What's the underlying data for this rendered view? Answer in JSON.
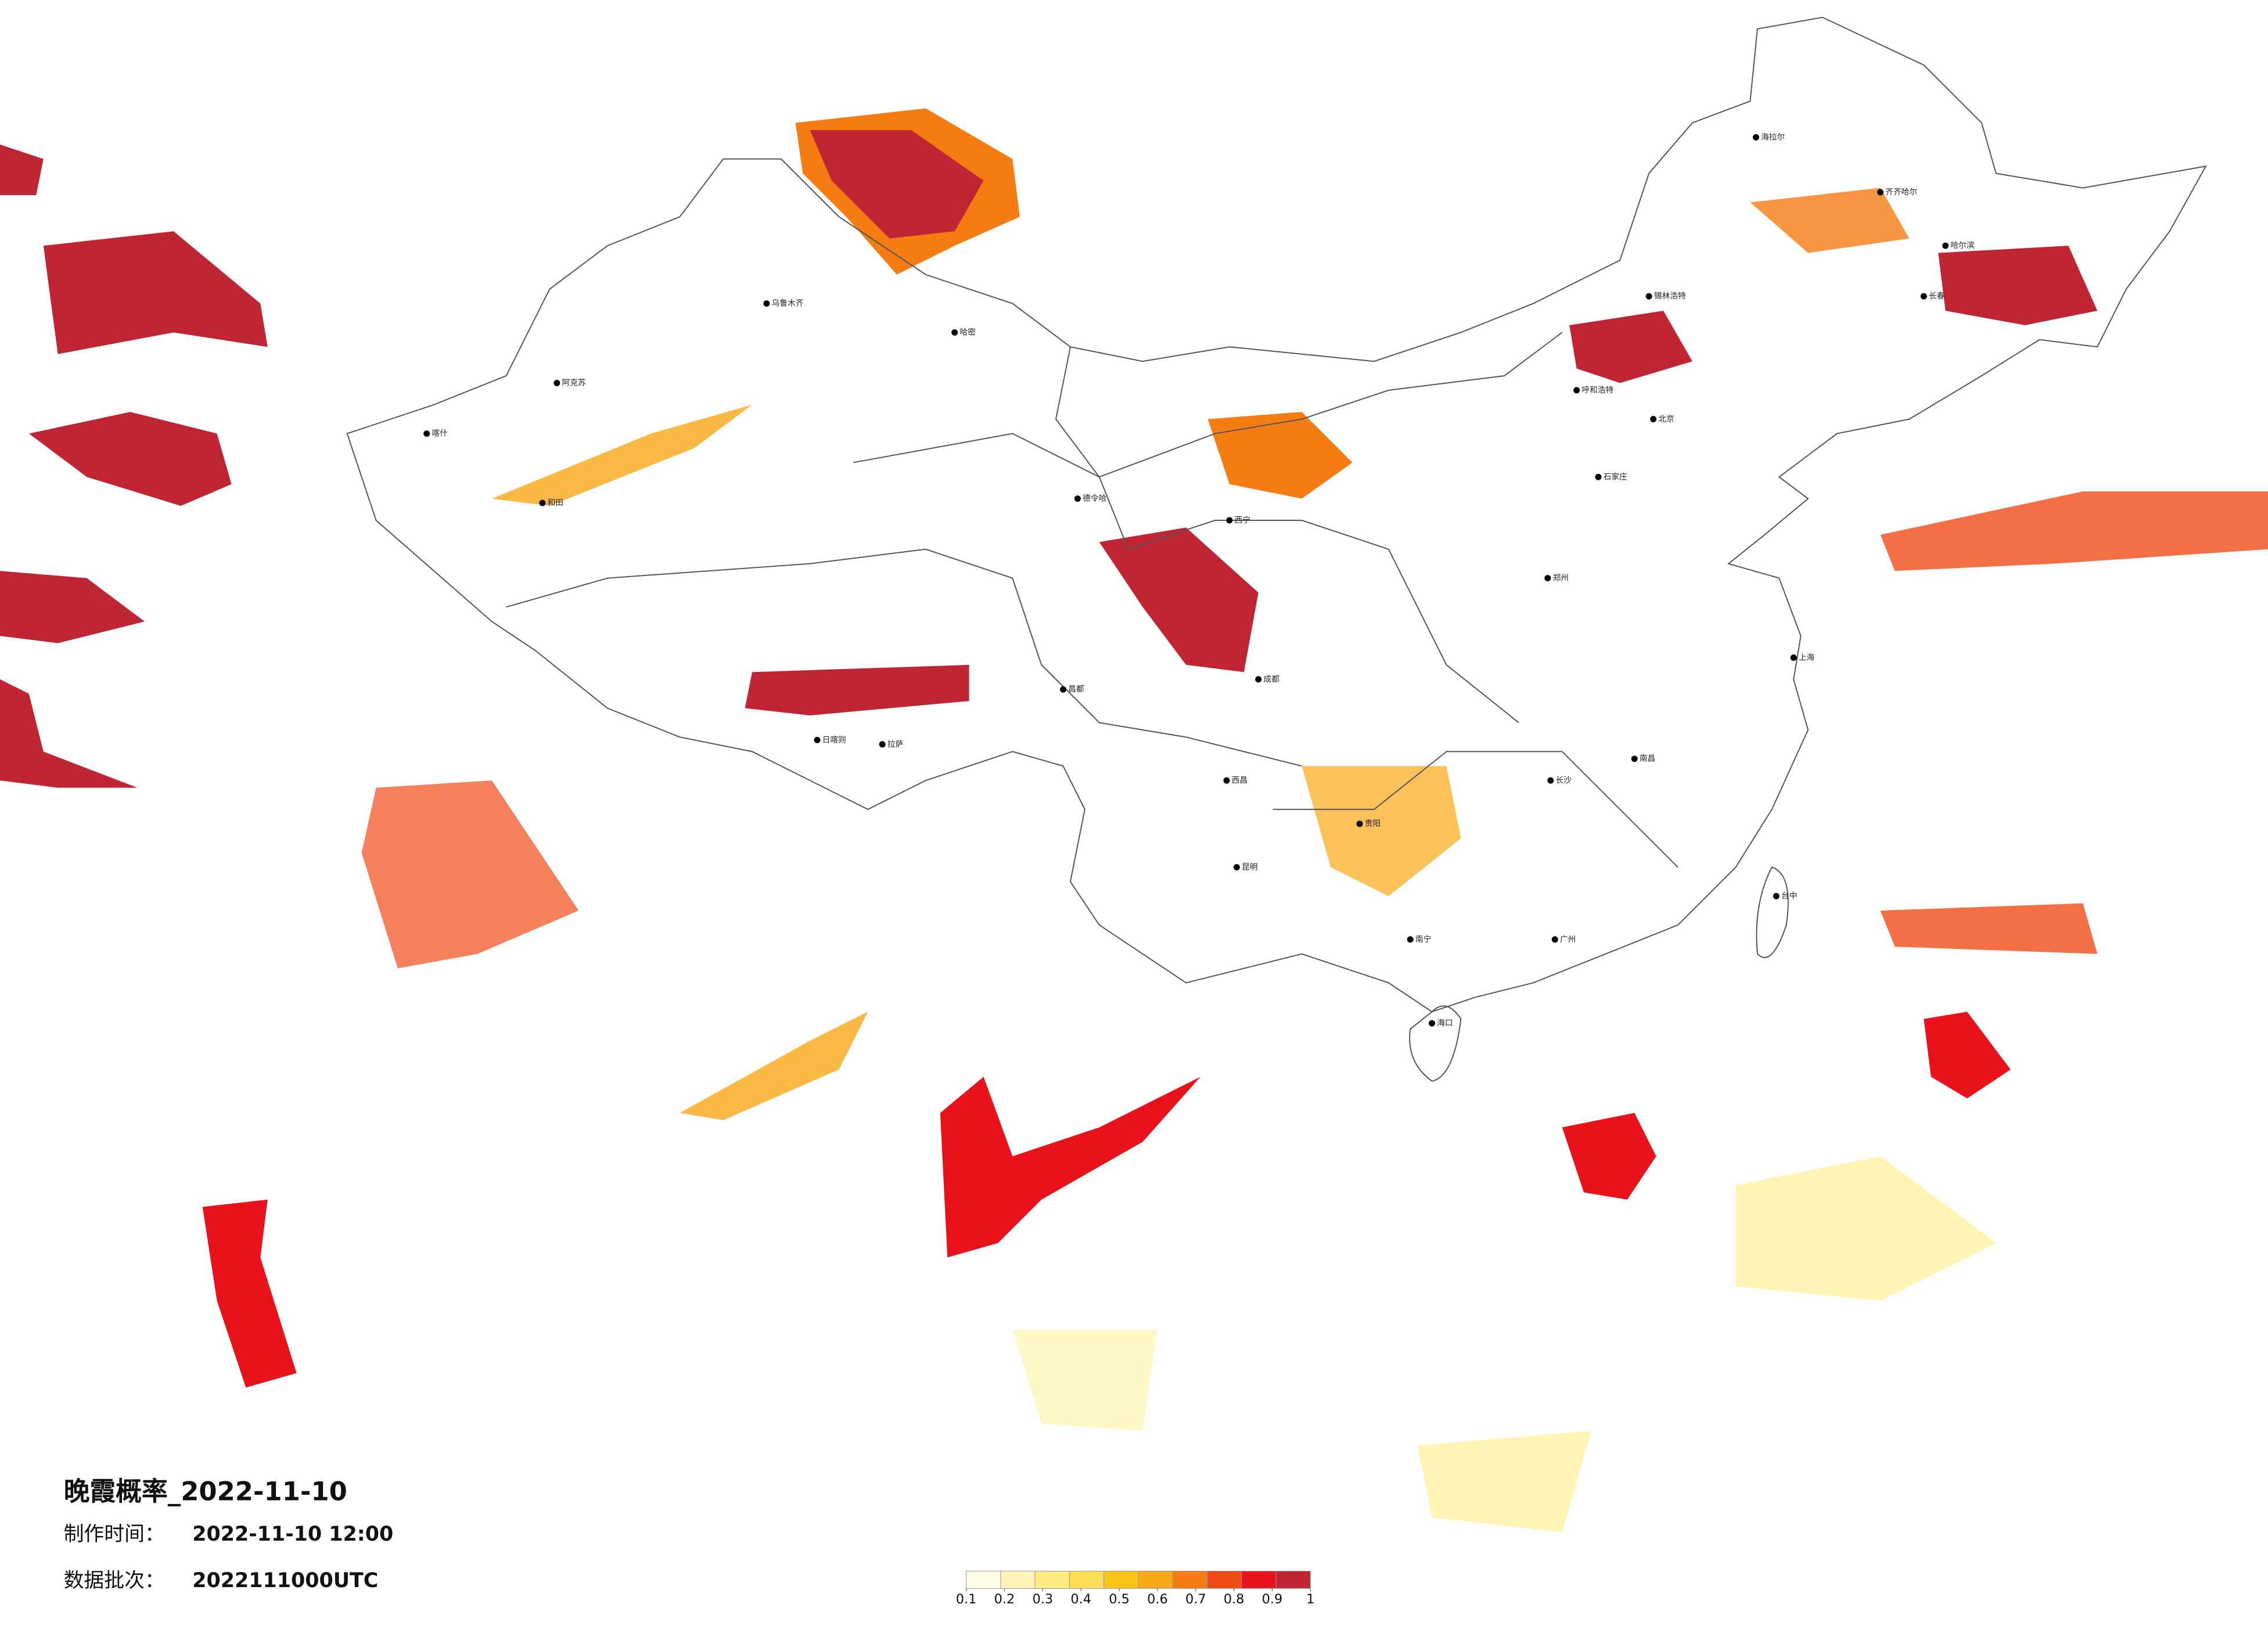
{
  "title": "晚霞概率_2022-11-10",
  "production_time": {
    "label": "制作时间：",
    "value": "2022-11-10 12:00"
  },
  "data_batch": {
    "label": "数据批次：",
    "value": "2022111000UTC"
  },
  "colorbar": {
    "colors": [
      "#fffbe8",
      "#fff4b8",
      "#ffec82",
      "#ffdc55",
      "#fcc417",
      "#f9a817",
      "#f47c13",
      "#f04b16",
      "#e8121b",
      "#bf2533"
    ],
    "ticks": [
      0.1,
      0.2,
      0.3,
      0.4,
      0.5,
      0.6,
      0.7,
      0.8,
      0.9,
      1
    ]
  },
  "cities": [
    "海拉尔",
    "齐齐哈尔",
    "哈尔滨",
    "长春",
    "锡林浩特",
    "呼和浩特",
    "北京",
    "石家庄",
    "西宁",
    "乌鲁木齐",
    "哈密",
    "阿克苏",
    "喀什",
    "和田",
    "德令哈",
    "日喀则",
    "拉萨",
    "昌都",
    "西昌",
    "昆明",
    "南宁",
    "海口",
    "台中",
    "南昌",
    "长沙",
    "贵阳",
    "成都",
    "郑州",
    "上海",
    "广州"
  ]
}
